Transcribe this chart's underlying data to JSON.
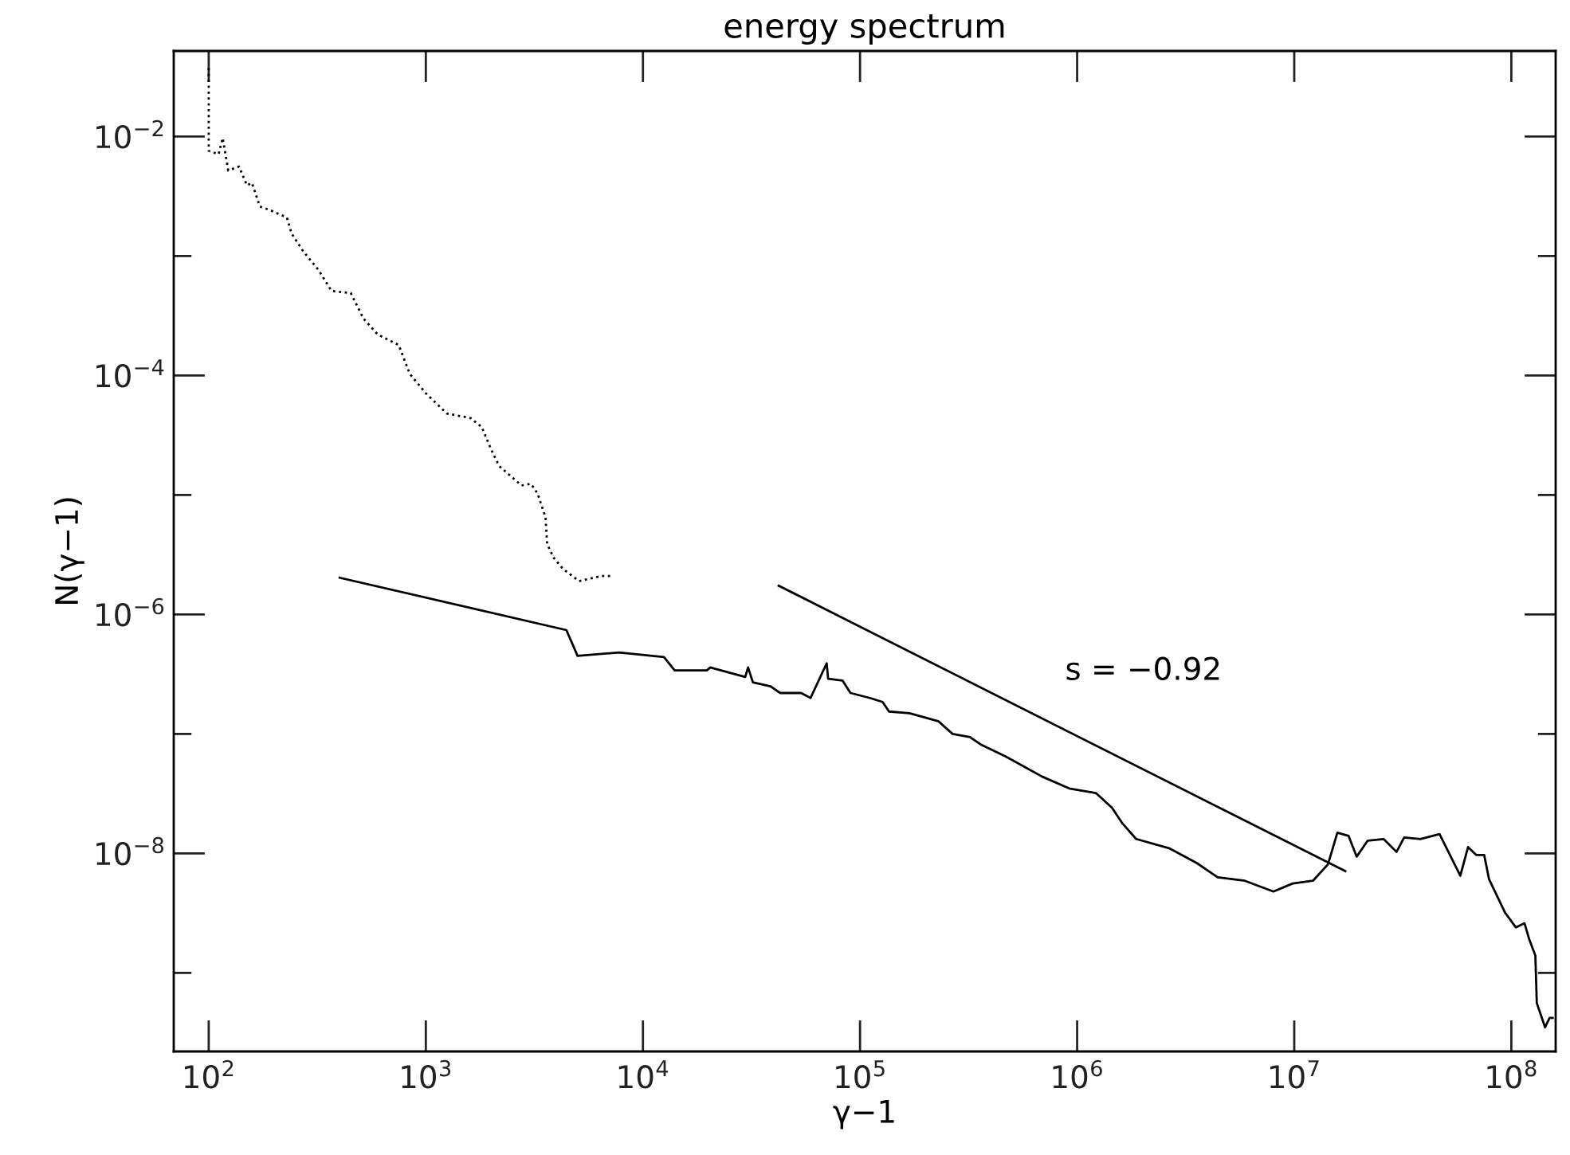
{
  "chart_data": {
    "type": "line",
    "title": "energy spectrum",
    "xlabel": "γ−1",
    "ylabel": "N(γ−1)",
    "log": "xy",
    "grid": false,
    "legend": false,
    "xlim": [
      69,
      160000000.0
    ],
    "ylim": [
      2.2e-10,
      0.052
    ],
    "xticks": [
      {
        "value": 100,
        "label": "10$^{2}$"
      },
      {
        "value": 1000,
        "label": "10$^{3}$"
      },
      {
        "value": 10000,
        "label": "10$^{4}$"
      },
      {
        "value": 100000,
        "label": "10$^{5}$"
      },
      {
        "value": 1000000,
        "label": "10$^{6}$"
      },
      {
        "value": 10000000,
        "label": "10$^{7}$"
      },
      {
        "value": 100000000,
        "label": "10$^{8}$"
      }
    ],
    "yticks": [
      {
        "value": 0.01,
        "label": "10$^{−2}$"
      },
      {
        "value": 0.001,
        "label": null
      },
      {
        "value": 0.0001,
        "label": "10$^{−4}$"
      },
      {
        "value": 1e-05,
        "label": null
      },
      {
        "value": 1e-06,
        "label": "10$^{−6}$"
      },
      {
        "value": 1e-07,
        "label": null
      },
      {
        "value": 1e-08,
        "label": "10$^{−8}$"
      },
      {
        "value": 1e-09,
        "label": null
      }
    ],
    "annotations": [
      "s = −0.92"
    ],
    "series": [
      {
        "color": "#000000",
        "line_style": "dotted",
        "x": [
          100,
          100,
          111,
          116,
          123,
          138,
          150,
          158,
          172,
          194,
          229,
          241,
          272,
          321,
          368,
          451,
          516,
          601,
          750,
          844,
          1000,
          1250,
          1610,
          1810,
          2000,
          2180,
          2760,
          3050,
          3270,
          3560,
          3620,
          3870,
          4290,
          5080,
          6440,
          7130
        ],
        "values": [
          0.0374,
          0.0076,
          0.0071,
          0.0097,
          0.0052,
          0.0056,
          0.0039,
          0.0041,
          0.0026,
          0.0024,
          0.0021,
          0.00154,
          0.0011,
          0.00076,
          0.00051,
          0.00049,
          0.0003,
          0.00022,
          0.00018,
          0.000103,
          7.1e-05,
          4.8e-05,
          4.4e-05,
          3.7e-05,
          2.4e-05,
          1.74e-05,
          1.2e-05,
          1.24e-05,
          1.03e-05,
          6.5e-06,
          3.9e-06,
          3e-06,
          2.4e-06,
          1.9e-06,
          2.1e-06,
          2.1e-06
        ]
      },
      {
        "color": "#000000",
        "line_style": "solid",
        "x": [
          401,
          4440,
          5000,
          7760,
          12500,
          14000,
          19700,
          20400,
          29600,
          30500,
          32100,
          38700,
          42900,
          53500,
          59200,
          70200,
          71300,
          83000,
          90400,
          111000,
          127000,
          136000,
          169000,
          229000,
          267000,
          321000,
          362000,
          467000,
          689000,
          919000,
          1220000,
          1450000,
          1610000,
          1870000,
          2670000,
          3560000,
          4440000,
          5920000,
          8020000,
          9840000,
          12200000,
          14300000,
          15800000,
          17800000,
          19400000,
          21800000,
          25800000,
          29600000,
          32100000,
          38100000,
          46700000,
          58200000,
          63200000,
          68900000,
          75000000,
          78900000,
          93500000,
          105000000,
          115000000,
          121000000,
          129000000,
          131000000,
          143000000,
          150000000,
          155000000
        ],
        "values": [
          2.03e-06,
          7.4e-07,
          4.5e-07,
          4.8e-07,
          4.4e-07,
          3.4e-07,
          3.4e-07,
          3.6e-07,
          3e-07,
          3.6e-07,
          2.7e-07,
          2.5e-07,
          2.2e-07,
          2.2e-07,
          2e-07,
          3.9e-07,
          2.9e-07,
          2.8e-07,
          2.2e-07,
          2e-07,
          1.85e-07,
          1.54e-07,
          1.49e-07,
          1.28e-07,
          1e-07,
          9.4e-08,
          8.1e-08,
          6.5e-08,
          4.4e-08,
          3.5e-08,
          3.2e-08,
          2.4e-08,
          1.8e-08,
          1.32e-08,
          1.1e-08,
          8.3e-09,
          6.3e-09,
          5.9e-09,
          4.8e-09,
          5.6e-09,
          5.9e-09,
          8.1e-09,
          1.49e-08,
          1.4e-08,
          9.4e-09,
          1.28e-08,
          1.32e-08,
          1.03e-08,
          1.36e-08,
          1.32e-08,
          1.45e-08,
          6.5e-09,
          1.13e-08,
          9.7e-09,
          9.7e-09,
          6.1e-09,
          3.2e-09,
          2.4e-09,
          2.6e-09,
          1.9e-09,
          1.4e-09,
          5.6e-10,
          3.5e-10,
          4.2e-10,
          4.2e-10
        ]
      },
      {
        "color": "#000000",
        "line_style": "solid",
        "x": [
          42200,
          17200000
        ],
        "values": [
          1.74e-06,
          7.1e-09
        ]
      }
    ]
  }
}
